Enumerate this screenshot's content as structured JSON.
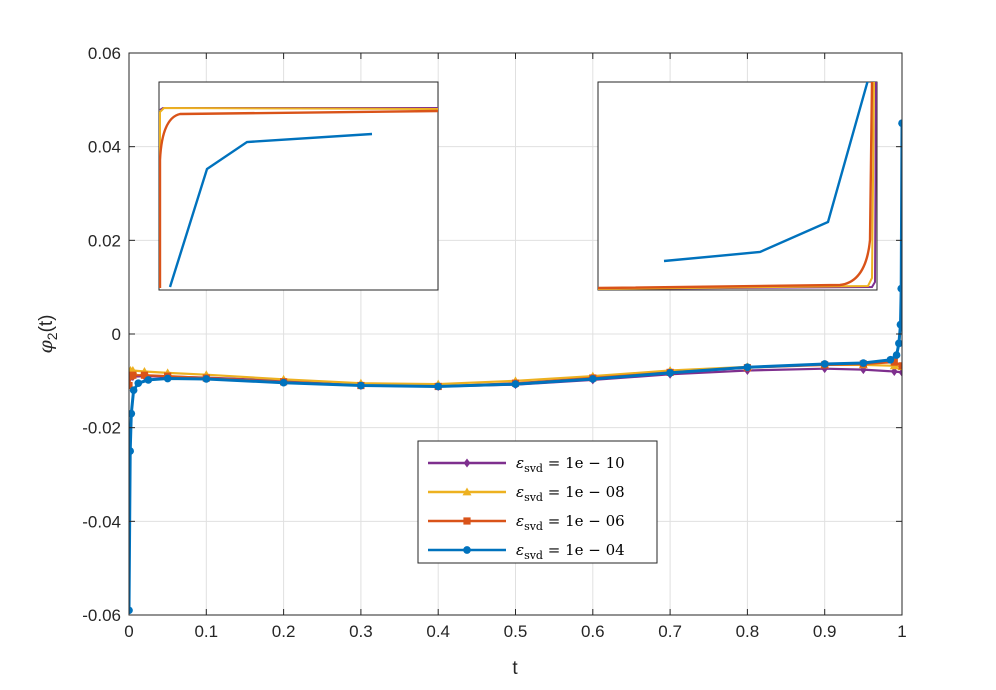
{
  "chart_data": {
    "type": "line",
    "title": "",
    "xlabel": "t",
    "ylabel_base": "φ",
    "ylabel_sub": "2",
    "ylabel_tail": "(t)",
    "xlim": [
      0,
      1
    ],
    "ylim": [
      -0.06,
      0.06
    ],
    "xticks": [
      0,
      0.1,
      0.2,
      0.3,
      0.4,
      0.5,
      0.6,
      0.7,
      0.8,
      0.9,
      1
    ],
    "xtick_labels": [
      "0",
      "0.1",
      "0.2",
      "0.3",
      "0.4",
      "0.5",
      "0.6",
      "0.7",
      "0.8",
      "0.9",
      "1"
    ],
    "yticks": [
      -0.06,
      -0.04,
      -0.02,
      0,
      0.02,
      0.04,
      0.06
    ],
    "ytick_labels": [
      "-0.06",
      "-0.04",
      "-0.02",
      "0",
      "0.02",
      "0.04",
      "0.06"
    ],
    "grid": true,
    "legend_position": "lower-center",
    "series": [
      {
        "name": "ε_svd = 1e − 10",
        "name_symbol": "ε",
        "name_sub": "svd",
        "name_rest": " = 1e − 10",
        "color": "#7E2F8E",
        "marker": "diamond",
        "x": [
          0.0,
          0.002,
          0.005,
          0.02,
          0.05,
          0.1,
          0.2,
          0.3,
          0.4,
          0.5,
          0.6,
          0.7,
          0.8,
          0.9,
          0.95,
          0.99,
          1.0
        ],
        "y": [
          -0.0095,
          -0.0092,
          -0.0091,
          -0.009,
          -0.0091,
          -0.0093,
          -0.01,
          -0.011,
          -0.0112,
          -0.0108,
          -0.0098,
          -0.0086,
          -0.0078,
          -0.0074,
          -0.0076,
          -0.008,
          -0.0082
        ]
      },
      {
        "name": "ε_svd = 1e − 08",
        "name_symbol": "ε",
        "name_sub": "svd",
        "name_rest": " = 1e − 08",
        "color": "#EDB120",
        "marker": "triangle",
        "x": [
          0.0,
          0.002,
          0.005,
          0.02,
          0.05,
          0.1,
          0.2,
          0.3,
          0.4,
          0.5,
          0.6,
          0.7,
          0.8,
          0.9,
          0.95,
          0.99,
          1.0
        ],
        "y": [
          -0.008,
          -0.0078,
          -0.0078,
          -0.008,
          -0.0083,
          -0.0087,
          -0.0097,
          -0.0105,
          -0.0107,
          -0.01,
          -0.009,
          -0.0078,
          -0.007,
          -0.0066,
          -0.0066,
          -0.0068,
          -0.007
        ]
      },
      {
        "name": "ε_svd = 1e − 06",
        "name_symbol": "ε",
        "name_sub": "svd",
        "name_rest": " = 1e − 06",
        "color": "#D95319",
        "marker": "square",
        "x": [
          0.0,
          0.002,
          0.005,
          0.02,
          0.05,
          0.1,
          0.2,
          0.3,
          0.4,
          0.5,
          0.6,
          0.7,
          0.8,
          0.9,
          0.95,
          0.99,
          1.0
        ],
        "y": [
          -0.011,
          -0.009,
          -0.0088,
          -0.0088,
          -0.009,
          -0.0094,
          -0.0102,
          -0.011,
          -0.0112,
          -0.0105,
          -0.0094,
          -0.0082,
          -0.0072,
          -0.0066,
          -0.0064,
          -0.006,
          -0.0068
        ]
      },
      {
        "name": "ε_svd = 1e − 04",
        "name_symbol": "ε",
        "name_sub": "svd",
        "name_rest": " = 1e − 04",
        "color": "#0072BD",
        "marker": "circle",
        "x": [
          0.0,
          0.0015,
          0.003,
          0.006,
          0.012,
          0.025,
          0.05,
          0.1,
          0.2,
          0.3,
          0.4,
          0.5,
          0.6,
          0.7,
          0.8,
          0.9,
          0.95,
          0.985,
          0.993,
          0.996,
          0.998,
          0.999,
          1.0
        ],
        "y": [
          -0.059,
          -0.025,
          -0.017,
          -0.012,
          -0.0105,
          -0.0098,
          -0.0095,
          -0.0096,
          -0.0104,
          -0.011,
          -0.0112,
          -0.0107,
          -0.0096,
          -0.0083,
          -0.0071,
          -0.0064,
          -0.0062,
          -0.0055,
          -0.0045,
          -0.002,
          0.002,
          0.0097,
          0.045
        ]
      }
    ]
  }
}
